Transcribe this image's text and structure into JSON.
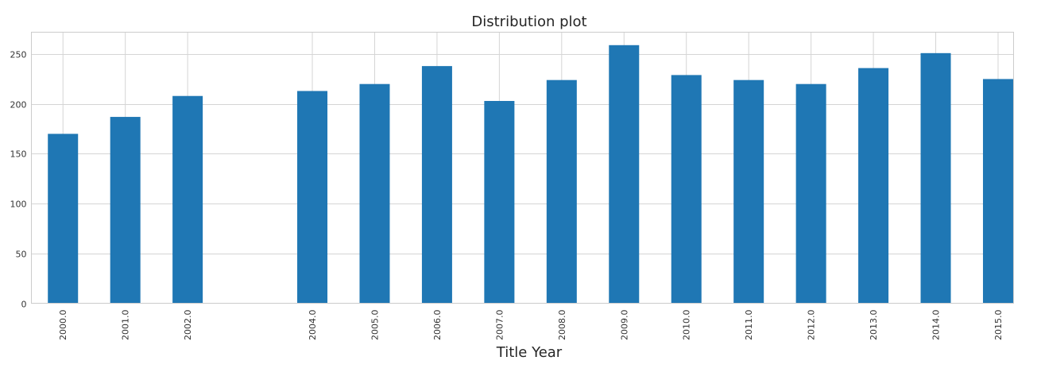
{
  "chart_data": {
    "type": "bar",
    "title": "Distribution plot",
    "xlabel": "Title Year",
    "ylabel": "",
    "categories": [
      "2000.0",
      "2001.0",
      "2002.0",
      "",
      "2004.0",
      "2005.0",
      "2006.0",
      "2007.0",
      "2008.0",
      "2009.0",
      "2010.0",
      "2011.0",
      "2012.0",
      "2013.0",
      "2014.0",
      "2015.0"
    ],
    "values": [
      170,
      187,
      208,
      null,
      213,
      220,
      238,
      203,
      224,
      259,
      229,
      224,
      220,
      236,
      251,
      225
    ],
    "ylim": [
      0,
      272
    ],
    "yticks": [
      0,
      50,
      100,
      150,
      200,
      250
    ],
    "grid": true,
    "bar_color": "#1f77b4",
    "grid_color": "#d5d5d5"
  }
}
